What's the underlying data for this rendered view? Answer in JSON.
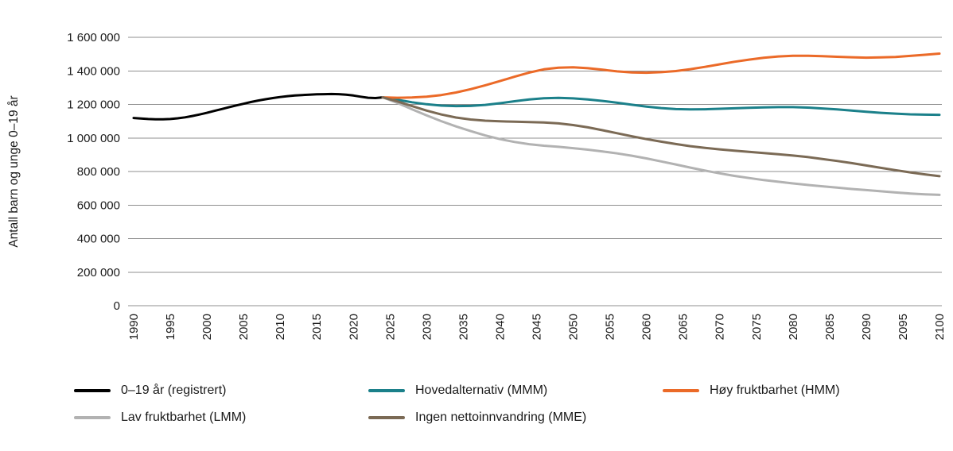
{
  "figure": {
    "background": "#ffffff",
    "gridline_color": "#8f8f8f"
  },
  "chart_data": {
    "type": "line",
    "title": "",
    "xlabel": "",
    "ylabel": "Antall barn og unge 0–19 år",
    "xlim": [
      1990,
      2100
    ],
    "ylim": [
      0,
      1600000
    ],
    "grid": "horizontal-only",
    "legend_position": "bottom",
    "xticks": [
      1990,
      1995,
      2000,
      2005,
      2010,
      2015,
      2020,
      2025,
      2030,
      2035,
      2040,
      2045,
      2050,
      2055,
      2060,
      2065,
      2070,
      2075,
      2080,
      2085,
      2090,
      2095,
      2100
    ],
    "yticks": [
      0,
      200000,
      400000,
      600000,
      800000,
      1000000,
      1200000,
      1400000,
      1600000
    ],
    "ytick_labels": [
      "0",
      "200 000",
      "400 000",
      "600 000",
      "800 000",
      "1 000 000",
      "1 200 000",
      "1 400 000",
      "1 600 000"
    ],
    "series": [
      {
        "id": "registrert",
        "name": "0–19 år (registrert)",
        "color": "#000000",
        "x": [
          1990,
          1991,
          1992,
          1993,
          1994,
          1995,
          1996,
          1997,
          1998,
          1999,
          2000,
          2001,
          2002,
          2003,
          2004,
          2005,
          2006,
          2007,
          2008,
          2009,
          2010,
          2011,
          2012,
          2013,
          2014,
          2015,
          2016,
          2017,
          2018,
          2019,
          2020,
          2021,
          2022,
          2023,
          2024
        ],
        "values": [
          1119000,
          1116000,
          1113000,
          1111000,
          1111000,
          1113000,
          1117000,
          1123000,
          1131000,
          1140000,
          1150000,
          1161000,
          1172000,
          1183000,
          1194000,
          1204000,
          1214000,
          1223000,
          1231000,
          1238000,
          1244000,
          1249000,
          1253000,
          1256000,
          1258000,
          1260000,
          1261000,
          1262000,
          1261000,
          1258000,
          1253000,
          1246000,
          1240000,
          1238000,
          1242000
        ]
      },
      {
        "id": "hovedalternativ-mmm",
        "name": "Hovedalternativ (MMM)",
        "color": "#1b808a",
        "x": [
          2024,
          2026,
          2028,
          2030,
          2032,
          2034,
          2036,
          2038,
          2040,
          2042,
          2044,
          2046,
          2048,
          2050,
          2052,
          2054,
          2056,
          2058,
          2060,
          2062,
          2064,
          2066,
          2068,
          2070,
          2072,
          2074,
          2076,
          2078,
          2080,
          2082,
          2084,
          2086,
          2088,
          2090,
          2092,
          2094,
          2096,
          2098,
          2100
        ],
        "values": [
          1242000,
          1228000,
          1213000,
          1201000,
          1193000,
          1190000,
          1191000,
          1197000,
          1207000,
          1219000,
          1230000,
          1237000,
          1239000,
          1236000,
          1230000,
          1221000,
          1210000,
          1198000,
          1187000,
          1178000,
          1172000,
          1170000,
          1171000,
          1174000,
          1177000,
          1180000,
          1182000,
          1184000,
          1184000,
          1181000,
          1176000,
          1170000,
          1163000,
          1156000,
          1150000,
          1145000,
          1141000,
          1139000,
          1138000
        ]
      },
      {
        "id": "hoy-fruktbarhet-hmm",
        "name": "Høy fruktbarhet (HMM)",
        "color": "#eb6a28",
        "x": [
          2024,
          2026,
          2028,
          2030,
          2032,
          2034,
          2036,
          2038,
          2040,
          2042,
          2044,
          2046,
          2048,
          2050,
          2052,
          2054,
          2056,
          2058,
          2060,
          2062,
          2064,
          2066,
          2068,
          2070,
          2072,
          2074,
          2076,
          2078,
          2080,
          2082,
          2084,
          2086,
          2088,
          2090,
          2092,
          2094,
          2096,
          2098,
          2100
        ],
        "values": [
          1242000,
          1240000,
          1241000,
          1246000,
          1256000,
          1271000,
          1291000,
          1314000,
          1339000,
          1365000,
          1390000,
          1409000,
          1419000,
          1421000,
          1416000,
          1407000,
          1397000,
          1391000,
          1389000,
          1392000,
          1399000,
          1410000,
          1424000,
          1439000,
          1454000,
          1467000,
          1478000,
          1486000,
          1490000,
          1490000,
          1488000,
          1484000,
          1481000,
          1479000,
          1480000,
          1483000,
          1489000,
          1496000,
          1503000
        ]
      },
      {
        "id": "lav-fruktbarhet-lmm",
        "name": "Lav fruktbarhet (LMM)",
        "color": "#b2b2b2",
        "x": [
          2024,
          2026,
          2028,
          2030,
          2032,
          2034,
          2036,
          2038,
          2040,
          2042,
          2044,
          2046,
          2048,
          2050,
          2052,
          2054,
          2056,
          2058,
          2060,
          2062,
          2064,
          2066,
          2068,
          2070,
          2072,
          2074,
          2076,
          2078,
          2080,
          2082,
          2084,
          2086,
          2088,
          2090,
          2092,
          2094,
          2096,
          2098,
          2100
        ],
        "values": [
          1242000,
          1209000,
          1171000,
          1134000,
          1100000,
          1069000,
          1041000,
          1015000,
          993000,
          976000,
          963000,
          954000,
          947000,
          939000,
          930000,
          920000,
          908000,
          894000,
          878000,
          860000,
          842000,
          823000,
          805000,
          789000,
          774000,
          761000,
          749000,
          739000,
          729000,
          720000,
          712000,
          704000,
          696000,
          689000,
          682000,
          675000,
          669000,
          664000,
          661000
        ]
      },
      {
        "id": "ingen-nettoinnvandring-mme",
        "name": "Ingen nettoinnvandring (MME)",
        "color": "#7b6a55",
        "x": [
          2024,
          2026,
          2028,
          2030,
          2032,
          2034,
          2036,
          2038,
          2040,
          2042,
          2044,
          2046,
          2048,
          2050,
          2052,
          2054,
          2056,
          2058,
          2060,
          2062,
          2064,
          2066,
          2068,
          2070,
          2072,
          2074,
          2076,
          2078,
          2080,
          2082,
          2084,
          2086,
          2088,
          2090,
          2092,
          2094,
          2096,
          2098,
          2100
        ],
        "values": [
          1242000,
          1218000,
          1190000,
          1163000,
          1140000,
          1122000,
          1110000,
          1103000,
          1099000,
          1097000,
          1095000,
          1092000,
          1087000,
          1077000,
          1063000,
          1046000,
          1028000,
          1010000,
          993000,
          978000,
          964000,
          951000,
          941000,
          932000,
          924000,
          917000,
          910000,
          903000,
          895000,
          886000,
          875000,
          863000,
          850000,
          836000,
          822000,
          808000,
          795000,
          783000,
          772000
        ]
      }
    ]
  }
}
